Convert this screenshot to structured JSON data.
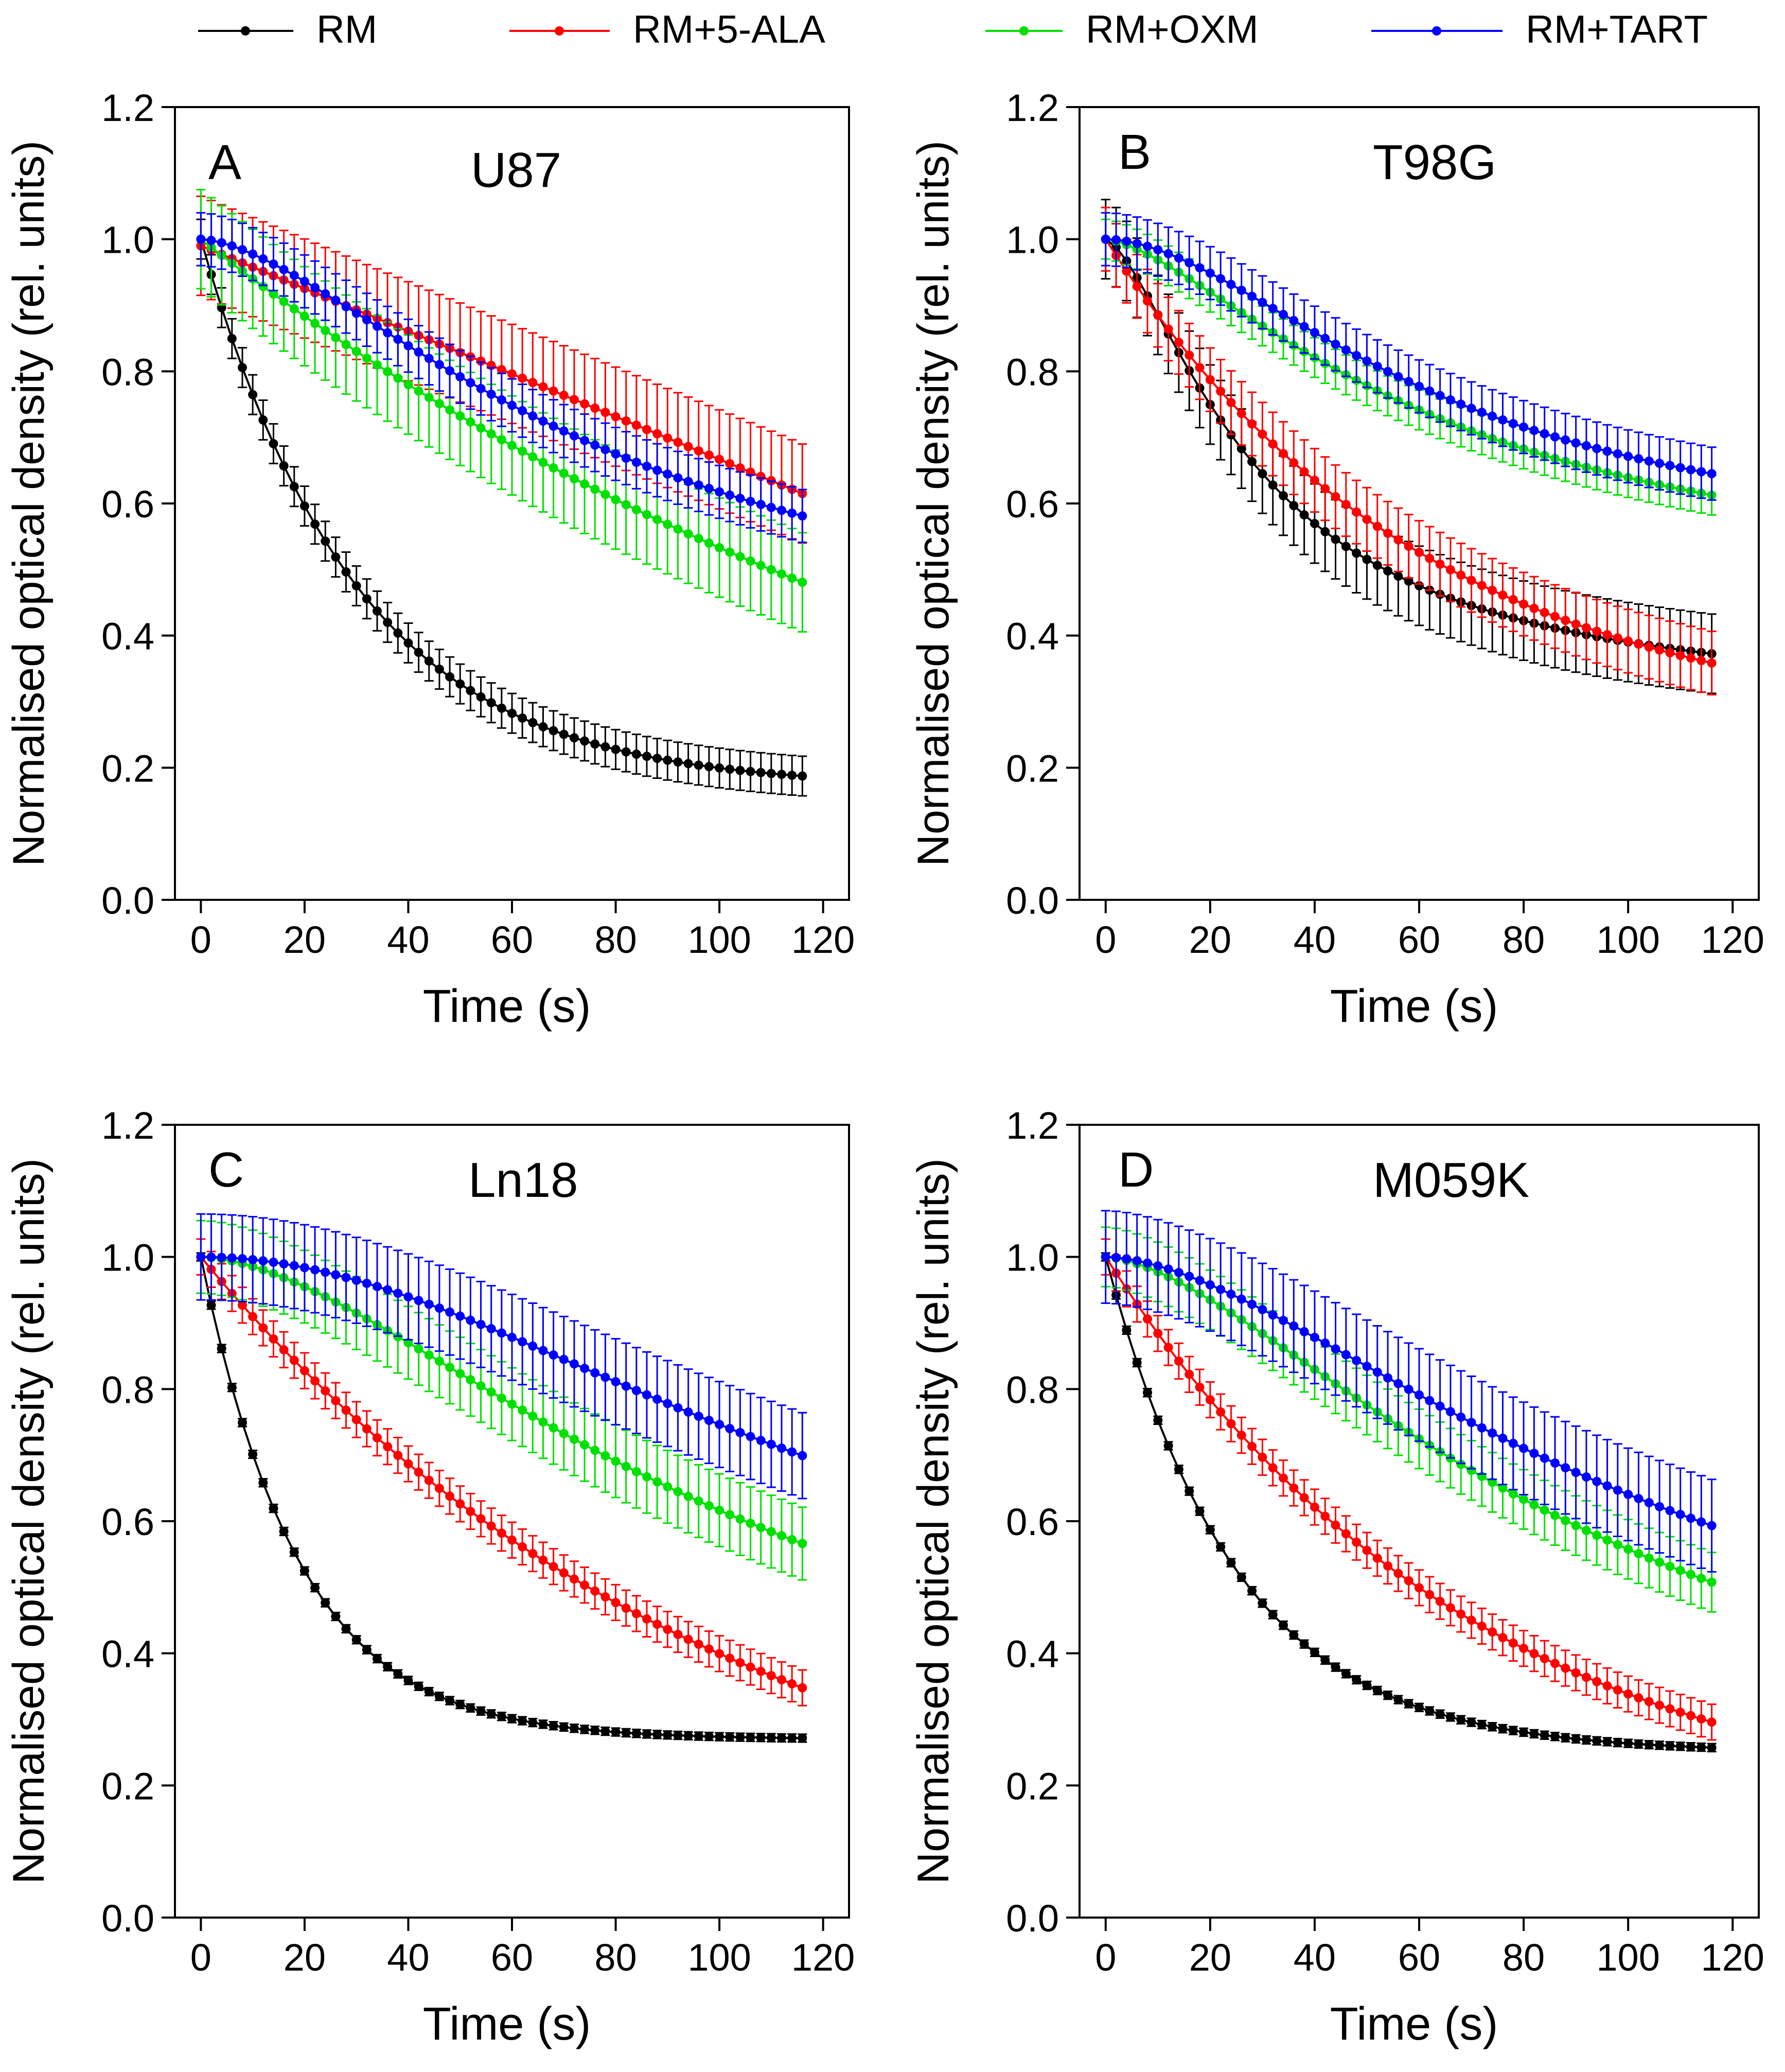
{
  "legend": [
    {
      "label": "RM",
      "color": "#000000"
    },
    {
      "label": "RM+5-ALA",
      "color": "#ff0000"
    },
    {
      "label": "RM+OXM",
      "color": "#00e000"
    },
    {
      "label": "RM+TART",
      "color": "#0000ff"
    }
  ],
  "axis_text": {
    "xlabel": "Time (s)",
    "ylabel": "Normalised optical density (rel. units)"
  },
  "chart_data": [
    {
      "type": "line",
      "panel": "A",
      "title": "U87",
      "xlabel": "Time (s)",
      "ylabel": "Normalised optical density (rel. units)",
      "xlim": [
        -5,
        125
      ],
      "ylim": [
        0,
        1.2
      ],
      "xticks": [
        "0",
        "20",
        "40",
        "60",
        "80",
        "100",
        "120"
      ],
      "yticks": [
        "0.0",
        "0.2",
        "0.4",
        "0.6",
        "0.8",
        "1.0",
        "1.2"
      ],
      "x_range": [
        0,
        116
      ],
      "x_step": 2,
      "series": [
        {
          "name": "RM",
          "color": "#000000",
          "model": "exp",
          "y0": 1.0,
          "yinf": 0.17,
          "tau": 30,
          "err": 0.03
        },
        {
          "name": "RM+5-ALA",
          "color": "#ff0000",
          "model": "linear",
          "y0": 0.99,
          "yend": 0.615,
          "err": 0.075
        },
        {
          "name": "RM+OXM",
          "color": "#00e000",
          "model": "exp",
          "y0": 1.0,
          "yinf": -0.05,
          "tau": 170,
          "err": 0.075
        },
        {
          "name": "RM+TART",
          "color": "#0000ff",
          "model": "sigmoid",
          "y0": 1.0,
          "yinf": 0.35,
          "tau": 80,
          "n": 1.6,
          "err": 0.04
        }
      ]
    },
    {
      "type": "line",
      "panel": "B",
      "title": "T98G",
      "xlabel": "Time (s)",
      "ylabel": "Normalised optical density (rel. units)",
      "xlim": [
        -5,
        125
      ],
      "ylim": [
        0,
        1.2
      ],
      "xticks": [
        "0",
        "20",
        "40",
        "60",
        "80",
        "100",
        "120"
      ],
      "yticks": [
        "0.0",
        "0.2",
        "0.4",
        "0.6",
        "0.8",
        "1.0",
        "1.2"
      ],
      "x_range": [
        0,
        116
      ],
      "x_step": 2,
      "series": [
        {
          "name": "RM",
          "color": "#000000",
          "model": "sigmoid",
          "y0": 1.0,
          "yinf": 0.29,
          "tau": 30,
          "n": 1.5,
          "err": 0.06
        },
        {
          "name": "RM+5-ALA",
          "color": "#ff0000",
          "model": "exp",
          "y0": 1.0,
          "yinf": 0.25,
          "tau": 60,
          "err": 0.048
        },
        {
          "name": "RM+OXM",
          "color": "#00e000",
          "model": "sigmoid",
          "y0": 1.0,
          "yinf": 0.45,
          "tau": 65,
          "n": 1.5,
          "err": 0.03
        },
        {
          "name": "RM+TART",
          "color": "#0000ff",
          "model": "sigmoid",
          "y0": 1.0,
          "yinf": 0.52,
          "tau": 65,
          "n": 1.8,
          "err": 0.04
        }
      ]
    },
    {
      "type": "line",
      "panel": "C",
      "title": "Ln18",
      "xlabel": "Time (s)",
      "ylabel": "Normalised optical density (rel. units)",
      "xlim": [
        -5,
        125
      ],
      "ylim": [
        0,
        1.2
      ],
      "xticks": [
        "0",
        "20",
        "40",
        "60",
        "80",
        "100",
        "120"
      ],
      "yticks": [
        "0.0",
        "0.2",
        "0.4",
        "0.6",
        "0.8",
        "1.0",
        "1.2"
      ],
      "x_range": [
        0,
        116
      ],
      "x_step": 2,
      "series": [
        {
          "name": "RM",
          "color": "#000000",
          "model": "exp",
          "y0": 1.0,
          "yinf": 0.27,
          "tau": 19,
          "err": 0.006
        },
        {
          "name": "RM+5-ALA",
          "color": "#ff0000",
          "model": "exp",
          "y0": 1.0,
          "yinf": 0.05,
          "tau": 100,
          "err": 0.027
        },
        {
          "name": "RM+OXM",
          "color": "#00e000",
          "model": "sigmoid",
          "y0": 1.0,
          "yinf": 0.2,
          "tau": 105,
          "n": 1.7,
          "err": 0.055
        },
        {
          "name": "RM+TART",
          "color": "#0000ff",
          "model": "sigmoid",
          "y0": 1.0,
          "yinf": 0.35,
          "tau": 125,
          "n": 2.0,
          "err": 0.065
        }
      ]
    },
    {
      "type": "line",
      "panel": "D",
      "title": "M059K",
      "xlabel": "Time (s)",
      "ylabel": "Normalised optical density (rel. units)",
      "xlim": [
        -5,
        125
      ],
      "ylim": [
        0,
        1.2
      ],
      "xticks": [
        "0",
        "20",
        "40",
        "60",
        "80",
        "100",
        "120"
      ],
      "yticks": [
        "0.0",
        "0.2",
        "0.4",
        "0.6",
        "0.8",
        "1.0",
        "1.2"
      ],
      "x_range": [
        0,
        116
      ],
      "x_step": 2,
      "series": [
        {
          "name": "RM",
          "color": "#000000",
          "model": "exp",
          "y0": 1.0,
          "yinf": 0.25,
          "tau": 25,
          "err": 0.006
        },
        {
          "name": "RM+5-ALA",
          "color": "#ff0000",
          "model": "exp",
          "y0": 1.0,
          "yinf": 0.13,
          "tau": 70,
          "err": 0.027
        },
        {
          "name": "RM+OXM",
          "color": "#00e000",
          "model": "sigmoid",
          "y0": 1.0,
          "yinf": 0.15,
          "tau": 95,
          "n": 1.6,
          "err": 0.045
        },
        {
          "name": "RM+TART",
          "color": "#0000ff",
          "model": "sigmoid",
          "y0": 1.0,
          "yinf": 0.25,
          "tau": 105,
          "n": 1.7,
          "err": 0.07
        }
      ]
    }
  ]
}
